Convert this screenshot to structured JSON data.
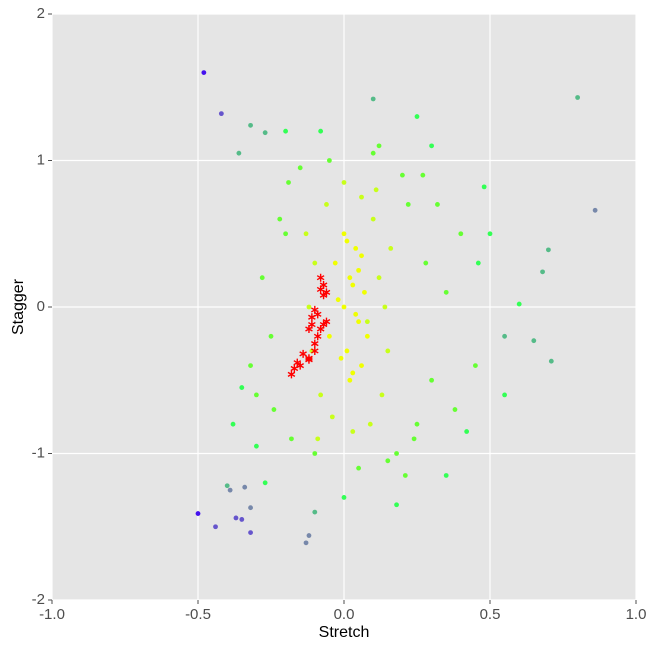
{
  "chart_data": {
    "type": "scatter",
    "x_label": "Stretch",
    "y_label": "Stagger",
    "xlim": [
      -1,
      1
    ],
    "ylim": [
      -2,
      2
    ],
    "xticks": [
      {
        "value": -1,
        "label": "-1.0"
      },
      -0.5,
      {
        "value": 0,
        "label": "0.0"
      },
      0.5,
      {
        "value": 1,
        "label": "1.0"
      }
    ],
    "yticks": [
      -2,
      -1,
      0,
      1,
      2
    ],
    "grid": true,
    "series": [
      {
        "color": "#4411ee",
        "x": [
          -0.48,
          -0.5
        ],
        "values": [
          1.6,
          -1.41
        ]
      },
      {
        "color": "#6655cc",
        "x": [
          -0.42,
          -0.37,
          -0.35,
          -0.44,
          -0.32
        ],
        "values": [
          1.32,
          -1.44,
          -1.45,
          -1.5,
          -1.54
        ]
      },
      {
        "color": "#7788aa",
        "x": [
          0.86,
          -0.34,
          -0.12,
          -0.13,
          -0.39,
          -0.32
        ],
        "values": [
          0.66,
          -1.23,
          -1.56,
          -1.61,
          -1.25,
          -1.37
        ]
      },
      {
        "color": "#55bb88",
        "x": [
          0.8,
          0.7,
          0.68,
          -0.32,
          -0.27,
          0.1,
          -0.36,
          0.65,
          0.71,
          -0.4,
          -0.1,
          0.55
        ],
        "values": [
          1.43,
          0.39,
          0.24,
          1.24,
          1.19,
          1.42,
          1.05,
          -0.23,
          -0.37,
          -1.22,
          -1.4,
          -0.2
        ]
      },
      {
        "color": "#33ff55",
        "x": [
          -0.3,
          0.48,
          0.5,
          -0.2,
          0.3,
          0.55,
          -0.35,
          0.42,
          0.46,
          -0.08,
          0.0,
          0.18,
          -0.27,
          0.35,
          0.6,
          -0.38,
          0.25
        ],
        "values": [
          -0.95,
          0.82,
          0.5,
          1.2,
          1.1,
          -0.6,
          -0.55,
          -0.85,
          0.3,
          1.2,
          -1.3,
          -1.35,
          -1.2,
          -1.15,
          0.02,
          -0.8,
          1.3
        ]
      },
      {
        "color": "#66ff33",
        "x": [
          -0.2,
          0.22,
          -0.25,
          0.25,
          -0.18,
          0.2,
          -0.15,
          0.18,
          0.28,
          -0.22,
          0.3,
          -0.3,
          0.35,
          -0.28,
          0.1,
          -0.05,
          0.05,
          0.15,
          -0.1,
          0.24,
          0.4,
          0.45,
          -0.24,
          0.32,
          0.38,
          -0.32,
          0.27,
          -0.19,
          0.21,
          0.12
        ],
        "values": [
          0.5,
          0.7,
          -0.2,
          -0.8,
          -0.9,
          0.9,
          0.95,
          -1.0,
          0.3,
          0.6,
          -0.5,
          -0.6,
          0.1,
          0.2,
          1.05,
          1.0,
          -1.1,
          -1.05,
          -1.0,
          -0.9,
          0.5,
          -0.4,
          -0.7,
          0.7,
          -0.7,
          -0.4,
          0.9,
          0.85,
          -1.15,
          1.1
        ]
      },
      {
        "color": "#c8ff1a",
        "x": [
          -0.1,
          0.12,
          -0.08,
          0.15,
          0.1,
          -0.12,
          0.13,
          -0.06,
          0.09,
          0.16,
          -0.11,
          0.11,
          0.0,
          0.03,
          -0.04,
          0.06,
          0.14,
          -0.13,
          0.08,
          -0.09
        ],
        "values": [
          0.3,
          0.2,
          -0.6,
          -0.3,
          0.6,
          0.0,
          -0.6,
          0.7,
          -0.8,
          0.4,
          -0.3,
          0.8,
          0.85,
          -0.85,
          -0.75,
          0.75,
          0.0,
          0.5,
          -0.1,
          -0.9
        ]
      },
      {
        "color": "#f0ff00",
        "x": [
          0.0,
          0.02,
          0.05,
          -0.03,
          0.07,
          0.01,
          0.04,
          -0.05,
          0.03,
          0.06,
          0.0,
          0.02,
          -0.02,
          0.05,
          0.08,
          0.03,
          -0.01,
          0.04,
          0.01,
          0.06
        ],
        "values": [
          0.0,
          0.2,
          -0.1,
          0.3,
          0.1,
          -0.3,
          0.4,
          -0.2,
          -0.45,
          0.35,
          0.5,
          -0.5,
          0.05,
          0.25,
          -0.2,
          0.15,
          -0.35,
          -0.05,
          0.45,
          -0.4
        ]
      },
      {
        "color": "#ff0000",
        "marker": "star",
        "x": [
          -0.08,
          -0.07,
          -0.06,
          -0.07,
          -0.08,
          -0.09,
          -0.07,
          -0.06,
          -0.08,
          -0.1,
          -0.11,
          -0.09,
          -0.1,
          -0.12,
          -0.1,
          -0.12,
          -0.14,
          -0.15,
          -0.17,
          -0.18,
          -0.16,
          -0.12,
          -0.11
        ],
        "values": [
          0.2,
          0.15,
          0.1,
          0.08,
          0.12,
          -0.05,
          -0.12,
          -0.1,
          -0.15,
          -0.02,
          -0.12,
          -0.2,
          -0.25,
          -0.15,
          -0.3,
          -0.35,
          -0.32,
          -0.4,
          -0.42,
          -0.46,
          -0.38,
          -0.36,
          -0.07
        ]
      }
    ]
  }
}
